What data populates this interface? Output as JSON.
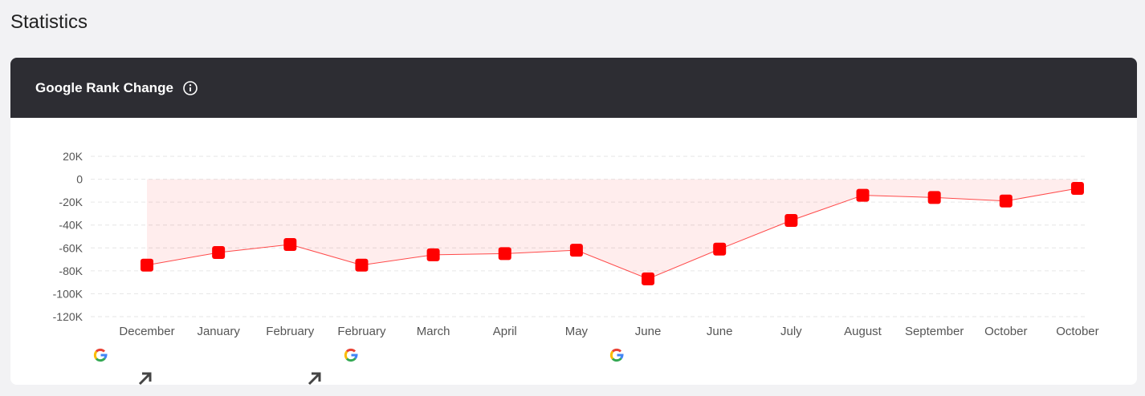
{
  "page": {
    "title": "Statistics",
    "card_title": "Google Rank Change"
  },
  "chart_data": {
    "type": "line",
    "color": "#ff0000",
    "categories": [
      "December",
      "January",
      "February",
      "February",
      "March",
      "April",
      "May",
      "June",
      "June",
      "July",
      "August",
      "September",
      "October",
      "October"
    ],
    "values": [
      -75000,
      -64000,
      -57000,
      -75000,
      -66000,
      -65000,
      -62000,
      -87000,
      -61000,
      -36000,
      -14000,
      -16000,
      -19000,
      -8000
    ],
    "ylim": [
      -120000,
      20000
    ],
    "yticks": [
      {
        "value": 20000,
        "label": "20K"
      },
      0,
      {
        "value": -20000,
        "label": "-20K"
      },
      {
        "value": -40000,
        "label": "-40K"
      },
      {
        "value": -60000,
        "label": "-60K"
      },
      {
        "value": -80000,
        "label": "-80K"
      },
      {
        "value": -100000,
        "label": "-100K"
      },
      {
        "value": -120000,
        "label": "-120K"
      }
    ],
    "grid": true
  }
}
